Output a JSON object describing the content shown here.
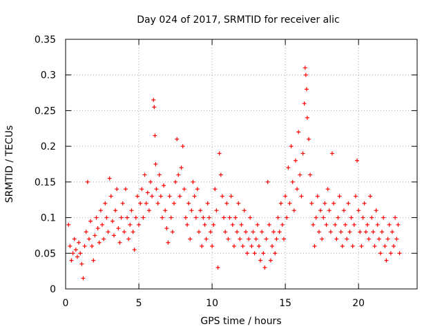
{
  "chart_data": {
    "type": "scatter",
    "title": "Day 024 of 2017, SRMTID for receiver alic",
    "xlabel": "GPS time / hours",
    "ylabel": "SRMTID / TECUs",
    "xlim": [
      0,
      24
    ],
    "ylim": [
      0,
      0.35
    ],
    "xticks": [
      0,
      5,
      10,
      15,
      20
    ],
    "xtick_labels": [
      "0",
      "5",
      "10",
      "15",
      "20"
    ],
    "yticks": [
      0,
      0.05,
      0.1,
      0.15,
      0.2,
      0.25,
      0.3,
      0.35
    ],
    "ytick_labels": [
      "0",
      "0.05",
      "0.1",
      "0.15",
      "0.2",
      "0.25",
      "0.3",
      "0.35"
    ],
    "grid": true,
    "marker": "+",
    "marker_color": "#ff0000",
    "series": [
      {
        "name": "SRMTID",
        "points": [
          [
            0.2,
            0.09
          ],
          [
            0.3,
            0.06
          ],
          [
            0.4,
            0.04
          ],
          [
            0.5,
            0.05
          ],
          [
            0.6,
            0.07
          ],
          [
            0.7,
            0.055
          ],
          [
            0.8,
            0.045
          ],
          [
            0.9,
            0.065
          ],
          [
            1.0,
            0.05
          ],
          [
            1.1,
            0.035
          ],
          [
            1.2,
            0.015
          ],
          [
            1.3,
            0.06
          ],
          [
            1.4,
            0.08
          ],
          [
            1.5,
            0.15
          ],
          [
            1.6,
            0.07
          ],
          [
            1.7,
            0.095
          ],
          [
            1.8,
            0.06
          ],
          [
            1.9,
            0.04
          ],
          [
            2.0,
            0.075
          ],
          [
            2.1,
            0.1
          ],
          [
            2.2,
            0.085
          ],
          [
            2.3,
            0.065
          ],
          [
            2.4,
            0.11
          ],
          [
            2.5,
            0.09
          ],
          [
            2.6,
            0.07
          ],
          [
            2.7,
            0.12
          ],
          [
            2.8,
            0.1
          ],
          [
            2.9,
            0.08
          ],
          [
            3.0,
            0.155
          ],
          [
            3.1,
            0.13
          ],
          [
            3.2,
            0.095
          ],
          [
            3.3,
            0.075
          ],
          [
            3.4,
            0.11
          ],
          [
            3.5,
            0.14
          ],
          [
            3.6,
            0.085
          ],
          [
            3.7,
            0.065
          ],
          [
            3.8,
            0.1
          ],
          [
            3.9,
            0.12
          ],
          [
            4.0,
            0.08
          ],
          [
            4.1,
            0.14
          ],
          [
            4.2,
            0.1
          ],
          [
            4.3,
            0.07
          ],
          [
            4.4,
            0.09
          ],
          [
            4.5,
            0.11
          ],
          [
            4.6,
            0.08
          ],
          [
            4.7,
            0.055
          ],
          [
            4.8,
            0.1
          ],
          [
            4.9,
            0.13
          ],
          [
            5.0,
            0.09
          ],
          [
            5.1,
            0.12
          ],
          [
            5.2,
            0.14
          ],
          [
            5.3,
            0.1
          ],
          [
            5.4,
            0.16
          ],
          [
            5.5,
            0.12
          ],
          [
            5.6,
            0.135
          ],
          [
            5.7,
            0.11
          ],
          [
            5.8,
            0.15
          ],
          [
            5.9,
            0.13
          ],
          [
            6.0,
            0.265
          ],
          [
            6.05,
            0.255
          ],
          [
            6.1,
            0.215
          ],
          [
            6.15,
            0.175
          ],
          [
            6.2,
            0.14
          ],
          [
            6.3,
            0.12
          ],
          [
            6.4,
            0.16
          ],
          [
            6.5,
            0.13
          ],
          [
            6.6,
            0.1
          ],
          [
            6.7,
            0.145
          ],
          [
            6.8,
            0.11
          ],
          [
            6.9,
            0.085
          ],
          [
            7.0,
            0.065
          ],
          [
            7.1,
            0.13
          ],
          [
            7.2,
            0.1
          ],
          [
            7.3,
            0.08
          ],
          [
            7.4,
            0.12
          ],
          [
            7.5,
            0.15
          ],
          [
            7.6,
            0.21
          ],
          [
            7.7,
            0.16
          ],
          [
            7.8,
            0.13
          ],
          [
            7.9,
            0.17
          ],
          [
            8.0,
            0.2
          ],
          [
            8.1,
            0.14
          ],
          [
            8.2,
            0.1
          ],
          [
            8.3,
            0.09
          ],
          [
            8.4,
            0.12
          ],
          [
            8.5,
            0.07
          ],
          [
            8.6,
            0.11
          ],
          [
            8.7,
            0.15
          ],
          [
            8.8,
            0.13
          ],
          [
            8.9,
            0.1
          ],
          [
            9.0,
            0.14
          ],
          [
            9.1,
            0.08
          ],
          [
            9.2,
            0.11
          ],
          [
            9.3,
            0.06
          ],
          [
            9.4,
            0.1
          ],
          [
            9.5,
            0.09
          ],
          [
            9.6,
            0.07
          ],
          [
            9.7,
            0.12
          ],
          [
            9.8,
            0.1
          ],
          [
            9.9,
            0.08
          ],
          [
            10.0,
            0.06
          ],
          [
            10.1,
            0.09
          ],
          [
            10.2,
            0.14
          ],
          [
            10.3,
            0.11
          ],
          [
            10.4,
            0.03
          ],
          [
            10.5,
            0.19
          ],
          [
            10.6,
            0.16
          ],
          [
            10.7,
            0.13
          ],
          [
            10.8,
            0.1
          ],
          [
            10.9,
            0.08
          ],
          [
            11.0,
            0.12
          ],
          [
            11.1,
            0.07
          ],
          [
            11.2,
            0.1
          ],
          [
            11.3,
            0.13
          ],
          [
            11.4,
            0.09
          ],
          [
            11.5,
            0.06
          ],
          [
            11.6,
            0.1
          ],
          [
            11.7,
            0.08
          ],
          [
            11.8,
            0.12
          ],
          [
            11.9,
            0.07
          ],
          [
            12.0,
            0.09
          ],
          [
            12.1,
            0.06
          ],
          [
            12.2,
            0.11
          ],
          [
            12.3,
            0.08
          ],
          [
            12.4,
            0.05
          ],
          [
            12.5,
            0.07
          ],
          [
            12.6,
            0.1
          ],
          [
            12.7,
            0.06
          ],
          [
            12.8,
            0.08
          ],
          [
            12.9,
            0.05
          ],
          [
            13.0,
            0.07
          ],
          [
            13.1,
            0.09
          ],
          [
            13.2,
            0.06
          ],
          [
            13.3,
            0.04
          ],
          [
            13.4,
            0.08
          ],
          [
            13.5,
            0.05
          ],
          [
            13.6,
            0.03
          ],
          [
            13.7,
            0.07
          ],
          [
            13.8,
            0.15
          ],
          [
            13.9,
            0.09
          ],
          [
            14.0,
            0.04
          ],
          [
            14.1,
            0.06
          ],
          [
            14.2,
            0.08
          ],
          [
            14.3,
            0.05
          ],
          [
            14.4,
            0.07
          ],
          [
            14.5,
            0.1
          ],
          [
            14.6,
            0.08
          ],
          [
            14.7,
            0.12
          ],
          [
            14.8,
            0.09
          ],
          [
            14.9,
            0.07
          ],
          [
            15.0,
            0.13
          ],
          [
            15.1,
            0.1
          ],
          [
            15.2,
            0.17
          ],
          [
            15.3,
            0.12
          ],
          [
            15.4,
            0.2
          ],
          [
            15.5,
            0.15
          ],
          [
            15.6,
            0.11
          ],
          [
            15.7,
            0.18
          ],
          [
            15.8,
            0.14
          ],
          [
            15.9,
            0.22
          ],
          [
            16.0,
            0.16
          ],
          [
            16.1,
            0.13
          ],
          [
            16.2,
            0.19
          ],
          [
            16.3,
            0.26
          ],
          [
            16.35,
            0.31
          ],
          [
            16.4,
            0.3
          ],
          [
            16.45,
            0.28
          ],
          [
            16.5,
            0.24
          ],
          [
            16.6,
            0.21
          ],
          [
            16.7,
            0.16
          ],
          [
            16.8,
            0.12
          ],
          [
            16.9,
            0.09
          ],
          [
            17.0,
            0.06
          ],
          [
            17.1,
            0.1
          ],
          [
            17.2,
            0.13
          ],
          [
            17.3,
            0.08
          ],
          [
            17.4,
            0.11
          ],
          [
            17.5,
            0.07
          ],
          [
            17.6,
            0.1
          ],
          [
            17.7,
            0.12
          ],
          [
            17.8,
            0.09
          ],
          [
            17.9,
            0.14
          ],
          [
            18.0,
            0.11
          ],
          [
            18.1,
            0.08
          ],
          [
            18.2,
            0.19
          ],
          [
            18.3,
            0.12
          ],
          [
            18.4,
            0.09
          ],
          [
            18.5,
            0.07
          ],
          [
            18.6,
            0.1
          ],
          [
            18.7,
            0.13
          ],
          [
            18.8,
            0.08
          ],
          [
            18.9,
            0.06
          ],
          [
            19.0,
            0.11
          ],
          [
            19.1,
            0.09
          ],
          [
            19.2,
            0.07
          ],
          [
            19.3,
            0.12
          ],
          [
            19.4,
            0.08
          ],
          [
            19.5,
            0.1
          ],
          [
            19.6,
            0.06
          ],
          [
            19.7,
            0.09
          ],
          [
            19.8,
            0.13
          ],
          [
            19.9,
            0.18
          ],
          [
            20.0,
            0.11
          ],
          [
            20.1,
            0.08
          ],
          [
            20.2,
            0.06
          ],
          [
            20.3,
            0.1
          ],
          [
            20.4,
            0.12
          ],
          [
            20.5,
            0.08
          ],
          [
            20.6,
            0.09
          ],
          [
            20.7,
            0.07
          ],
          [
            20.8,
            0.13
          ],
          [
            20.9,
            0.1
          ],
          [
            21.0,
            0.08
          ],
          [
            21.1,
            0.06
          ],
          [
            21.2,
            0.11
          ],
          [
            21.3,
            0.09
          ],
          [
            21.4,
            0.07
          ],
          [
            21.5,
            0.05
          ],
          [
            21.6,
            0.08
          ],
          [
            21.7,
            0.1
          ],
          [
            21.8,
            0.06
          ],
          [
            21.9,
            0.04
          ],
          [
            22.0,
            0.07
          ],
          [
            22.1,
            0.09
          ],
          [
            22.2,
            0.05
          ],
          [
            22.3,
            0.08
          ],
          [
            22.4,
            0.06
          ],
          [
            22.5,
            0.1
          ],
          [
            22.6,
            0.07
          ],
          [
            22.7,
            0.09
          ],
          [
            22.8,
            0.05
          ]
        ]
      }
    ]
  }
}
